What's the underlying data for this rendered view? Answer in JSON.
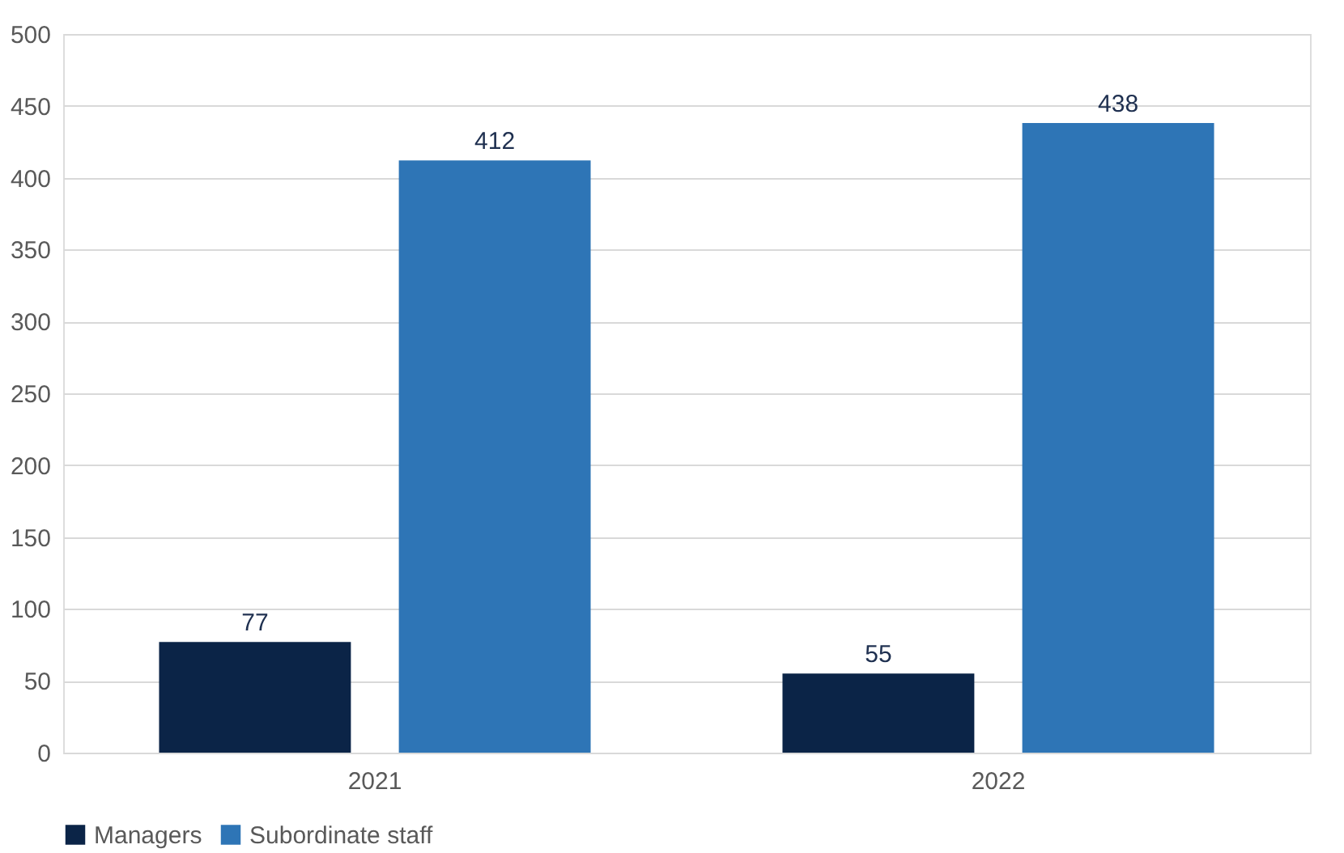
{
  "chart_data": {
    "type": "bar",
    "categories": [
      "2021",
      "2022"
    ],
    "series": [
      {
        "name": "Managers",
        "color": "#0b2447",
        "values": [
          77,
          55
        ]
      },
      {
        "name": "Subordinate staff",
        "color": "#2e75b6",
        "values": [
          412,
          438
        ]
      }
    ],
    "ylim": [
      0,
      500
    ],
    "yticks": [
      0,
      50,
      100,
      150,
      200,
      250,
      300,
      350,
      400,
      450,
      500
    ],
    "grid": "y",
    "legend": "bottom",
    "data_labels": true
  }
}
